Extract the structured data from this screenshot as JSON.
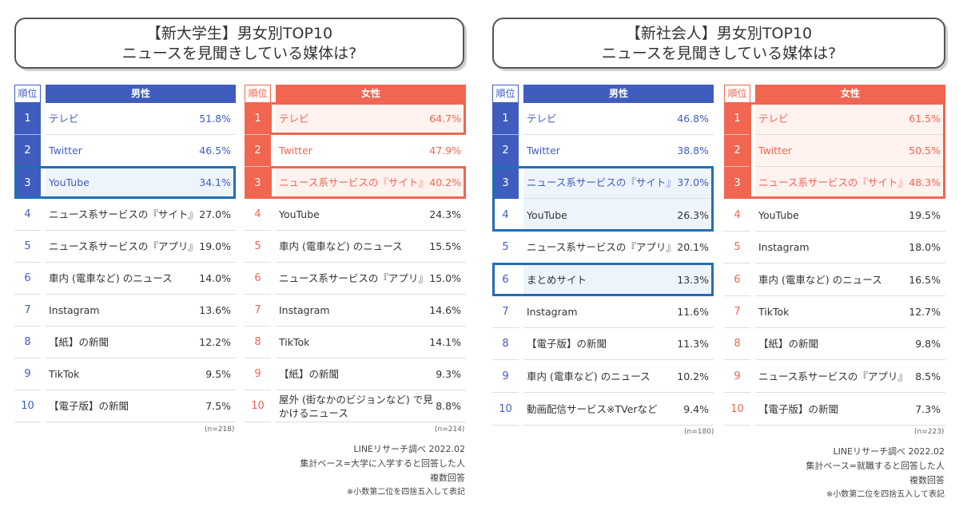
{
  "colors": {
    "male": "#3f5dbf",
    "female": "#f06650",
    "male_highlight_border": "#1f6fb5",
    "female_highlight_border": "#f06650"
  },
  "rank_header": "順位",
  "chart_data": [
    {
      "type": "table",
      "title_line1": "【新大学生】男女別TOP10",
      "title_line2": "ニュースを見聞きしている媒体は?",
      "male": {
        "header": "男性",
        "n": "(n=218)",
        "highlight_ranks": [
          1,
          2,
          3
        ],
        "boxed_ranks": [
          3
        ],
        "rows": [
          {
            "rank": "1",
            "name": "テレビ",
            "pct": "51.8%"
          },
          {
            "rank": "2",
            "name": "Twitter",
            "pct": "46.5%"
          },
          {
            "rank": "3",
            "name": "YouTube",
            "pct": "34.1%"
          },
          {
            "rank": "4",
            "name": "ニュース系サービスの『サイト』",
            "pct": "27.0%"
          },
          {
            "rank": "5",
            "name": "ニュース系サービスの『アプリ』",
            "pct": "19.0%"
          },
          {
            "rank": "6",
            "name": "車内 (電車など) のニュース",
            "pct": "14.0%"
          },
          {
            "rank": "7",
            "name": "Instagram",
            "pct": "13.6%"
          },
          {
            "rank": "8",
            "name": "【紙】の新聞",
            "pct": "12.2%"
          },
          {
            "rank": "9",
            "name": "TikTok",
            "pct": "9.5%"
          },
          {
            "rank": "10",
            "name": "【電子版】の新聞",
            "pct": "7.5%"
          }
        ]
      },
      "female": {
        "header": "女性",
        "n": "(n=214)",
        "highlight_ranks": [
          1,
          2,
          3
        ],
        "boxed_ranks": [
          1,
          3
        ],
        "rows": [
          {
            "rank": "1",
            "name": "テレビ",
            "pct": "64.7%"
          },
          {
            "rank": "2",
            "name": "Twitter",
            "pct": "47.9%"
          },
          {
            "rank": "3",
            "name": "ニュース系サービスの『サイト』",
            "pct": "40.2%"
          },
          {
            "rank": "4",
            "name": "YouTube",
            "pct": "24.3%"
          },
          {
            "rank": "5",
            "name": "車内 (電車など) のニュース",
            "pct": "15.5%"
          },
          {
            "rank": "6",
            "name": "ニュース系サービスの『アプリ』",
            "pct": "15.0%"
          },
          {
            "rank": "7",
            "name": "Instagram",
            "pct": "14.6%"
          },
          {
            "rank": "8",
            "name": "TikTok",
            "pct": "14.1%"
          },
          {
            "rank": "9",
            "name": "【紙】の新聞",
            "pct": "9.3%"
          },
          {
            "rank": "10",
            "name": "屋外 (街なかのビジョンなど) で見かけるニュース",
            "pct": "8.8%"
          }
        ]
      },
      "notes": [
        "LINEリサーチ調べ 2022.02",
        "集計ベース=大学に入学すると回答した人",
        "複数回答",
        "※小数第二位を四捨五入して表記"
      ]
    },
    {
      "type": "table",
      "title_line1": "【新社会人】男女別TOP10",
      "title_line2": "ニュースを見聞きしている媒体は?",
      "male": {
        "header": "男性",
        "n": "(n=180)",
        "highlight_ranks": [
          1,
          2,
          3
        ],
        "boxed_ranks": [
          3,
          4,
          6
        ],
        "rows": [
          {
            "rank": "1",
            "name": "テレビ",
            "pct": "46.8%"
          },
          {
            "rank": "2",
            "name": "Twitter",
            "pct": "38.8%"
          },
          {
            "rank": "3",
            "name": "ニュース系サービスの『サイト』",
            "pct": "37.0%"
          },
          {
            "rank": "4",
            "name": "YouTube",
            "pct": "26.3%"
          },
          {
            "rank": "5",
            "name": "ニュース系サービスの『アプリ』",
            "pct": "20.1%"
          },
          {
            "rank": "6",
            "name": "まとめサイト",
            "pct": "13.3%"
          },
          {
            "rank": "7",
            "name": "Instagram",
            "pct": "11.6%"
          },
          {
            "rank": "8",
            "name": "【電子版】の新聞",
            "pct": "11.3%"
          },
          {
            "rank": "9",
            "name": "車内 (電車など) のニュース",
            "pct": "10.2%"
          },
          {
            "rank": "10",
            "name": "動画配信サービス※TVerなど",
            "pct": "9.4%"
          }
        ]
      },
      "female": {
        "header": "女性",
        "n": "(n=223)",
        "highlight_ranks": [
          1,
          2,
          3
        ],
        "boxed_ranks": [
          1,
          2,
          3
        ],
        "rows": [
          {
            "rank": "1",
            "name": "テレビ",
            "pct": "61.5%"
          },
          {
            "rank": "2",
            "name": "Twitter",
            "pct": "50.5%"
          },
          {
            "rank": "3",
            "name": "ニュース系サービスの『サイト』",
            "pct": "48.3%"
          },
          {
            "rank": "4",
            "name": "YouTube",
            "pct": "19.5%"
          },
          {
            "rank": "5",
            "name": "Instagram",
            "pct": "18.0%"
          },
          {
            "rank": "6",
            "name": "車内 (電車など) のニュース",
            "pct": "16.5%"
          },
          {
            "rank": "7",
            "name": "TikTok",
            "pct": "12.7%"
          },
          {
            "rank": "8",
            "name": "【紙】の新聞",
            "pct": "9.8%"
          },
          {
            "rank": "9",
            "name": "ニュース系サービスの『アプリ』",
            "pct": "8.5%"
          },
          {
            "rank": "10",
            "name": "【電子版】の新聞",
            "pct": "7.3%"
          }
        ]
      },
      "notes": [
        "LINEリサーチ調べ 2022.02",
        "集計ベース=就職すると回答した人",
        "複数回答",
        "※小数第二位を四捨五入して表記"
      ]
    }
  ]
}
